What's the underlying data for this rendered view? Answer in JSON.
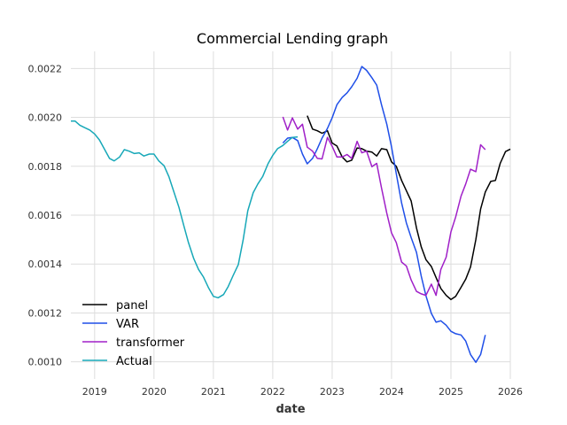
{
  "chart_data": {
    "type": "line",
    "title": "Commercial Lending graph",
    "xlabel": "date",
    "ylabel": "",
    "xlim": [
      2018.6,
      2026.0
    ],
    "ylim": [
      0.00093,
      0.00227
    ],
    "x_ticks": [
      2019,
      2020,
      2021,
      2022,
      2023,
      2024,
      2025,
      2026
    ],
    "y_ticks": [
      0.001,
      0.0012,
      0.0014,
      0.0016,
      0.0018,
      0.002,
      0.0022
    ],
    "y_tick_labels": [
      "0.0010",
      "0.0012",
      "0.0014",
      "0.0016",
      "0.0018",
      "0.0020",
      "0.0022"
    ],
    "grid": true,
    "legend_position": "lower-left",
    "series": [
      {
        "name": "panel",
        "color": "#000000",
        "points": [
          [
            2022.58,
            0.002007
          ],
          [
            2022.67,
            0.001952
          ],
          [
            2022.75,
            0.001945
          ],
          [
            2022.83,
            0.001935
          ],
          [
            2022.92,
            0.001945
          ],
          [
            2023.0,
            0.001895
          ],
          [
            2023.08,
            0.001883
          ],
          [
            2023.17,
            0.001838
          ],
          [
            2023.25,
            0.001818
          ],
          [
            2023.33,
            0.001825
          ],
          [
            2023.42,
            0.001875
          ],
          [
            2023.5,
            0.001872
          ],
          [
            2023.58,
            0.001862
          ],
          [
            2023.67,
            0.001858
          ],
          [
            2023.75,
            0.001842
          ],
          [
            2023.83,
            0.001872
          ],
          [
            2023.92,
            0.001868
          ],
          [
            2024.0,
            0.001818
          ],
          [
            2024.08,
            0.0018
          ],
          [
            2024.17,
            0.001742
          ],
          [
            2024.25,
            0.0017
          ],
          [
            2024.33,
            0.001658
          ],
          [
            2024.42,
            0.001548
          ],
          [
            2024.5,
            0.00147
          ],
          [
            2024.58,
            0.001418
          ],
          [
            2024.67,
            0.00139
          ],
          [
            2024.75,
            0.001345
          ],
          [
            2024.83,
            0.0013
          ],
          [
            2024.92,
            0.001272
          ],
          [
            2025.0,
            0.001255
          ],
          [
            2025.08,
            0.001268
          ],
          [
            2025.17,
            0.001305
          ],
          [
            2025.25,
            0.001338
          ],
          [
            2025.33,
            0.001388
          ],
          [
            2025.42,
            0.0015
          ],
          [
            2025.5,
            0.001625
          ],
          [
            2025.58,
            0.001695
          ],
          [
            2025.67,
            0.001738
          ],
          [
            2025.75,
            0.001742
          ],
          [
            2025.83,
            0.001812
          ],
          [
            2025.92,
            0.00186
          ],
          [
            2026.0,
            0.00187
          ]
        ]
      },
      {
        "name": "VAR",
        "color": "#1f4fe8",
        "points": [
          [
            2022.17,
            0.001895
          ],
          [
            2022.25,
            0.001915
          ],
          [
            2022.33,
            0.001918
          ],
          [
            2022.42,
            0.001905
          ],
          [
            2022.5,
            0.00185
          ],
          [
            2022.58,
            0.00181
          ],
          [
            2022.67,
            0.001832
          ],
          [
            2022.75,
            0.001872
          ],
          [
            2022.83,
            0.001915
          ],
          [
            2022.92,
            0.001955
          ],
          [
            2023.0,
            0.001998
          ],
          [
            2023.08,
            0.002052
          ],
          [
            2023.17,
            0.002082
          ],
          [
            2023.25,
            0.0021
          ],
          [
            2023.33,
            0.002125
          ],
          [
            2023.42,
            0.00216
          ],
          [
            2023.5,
            0.002208
          ],
          [
            2023.58,
            0.002192
          ],
          [
            2023.67,
            0.002162
          ],
          [
            2023.75,
            0.002132
          ],
          [
            2023.83,
            0.002052
          ],
          [
            2023.92,
            0.001972
          ],
          [
            2024.0,
            0.00188
          ],
          [
            2024.08,
            0.00177
          ],
          [
            2024.17,
            0.00165
          ],
          [
            2024.25,
            0.001568
          ],
          [
            2024.33,
            0.001508
          ],
          [
            2024.42,
            0.001448
          ],
          [
            2024.5,
            0.00135
          ],
          [
            2024.58,
            0.00127
          ],
          [
            2024.67,
            0.001198
          ],
          [
            2024.75,
            0.001162
          ],
          [
            2024.83,
            0.001168
          ],
          [
            2024.92,
            0.00115
          ],
          [
            2025.0,
            0.001125
          ],
          [
            2025.08,
            0.001115
          ],
          [
            2025.17,
            0.00111
          ],
          [
            2025.25,
            0.001085
          ],
          [
            2025.33,
            0.00103
          ],
          [
            2025.42,
            0.000998
          ],
          [
            2025.5,
            0.00103
          ],
          [
            2025.58,
            0.00111
          ]
        ]
      },
      {
        "name": "transformer",
        "color": "#a020c8",
        "points": [
          [
            2022.17,
            0.002002
          ],
          [
            2022.25,
            0.001948
          ],
          [
            2022.33,
            0.001998
          ],
          [
            2022.42,
            0.001952
          ],
          [
            2022.5,
            0.001972
          ],
          [
            2022.58,
            0.001878
          ],
          [
            2022.67,
            0.001862
          ],
          [
            2022.75,
            0.001832
          ],
          [
            2022.83,
            0.00183
          ],
          [
            2022.92,
            0.001918
          ],
          [
            2023.0,
            0.001882
          ],
          [
            2023.08,
            0.001838
          ],
          [
            2023.17,
            0.001838
          ],
          [
            2023.25,
            0.001848
          ],
          [
            2023.33,
            0.001832
          ],
          [
            2023.42,
            0.001902
          ],
          [
            2023.5,
            0.001855
          ],
          [
            2023.58,
            0.001862
          ],
          [
            2023.67,
            0.001798
          ],
          [
            2023.75,
            0.001812
          ],
          [
            2023.83,
            0.001712
          ],
          [
            2023.92,
            0.001608
          ],
          [
            2024.0,
            0.001528
          ],
          [
            2024.08,
            0.001488
          ],
          [
            2024.17,
            0.001408
          ],
          [
            2024.25,
            0.001392
          ],
          [
            2024.33,
            0.001335
          ],
          [
            2024.42,
            0.001288
          ],
          [
            2024.5,
            0.001278
          ],
          [
            2024.58,
            0.001272
          ],
          [
            2024.67,
            0.001318
          ],
          [
            2024.75,
            0.001272
          ],
          [
            2024.83,
            0.001378
          ],
          [
            2024.92,
            0.001428
          ],
          [
            2025.0,
            0.001532
          ],
          [
            2025.08,
            0.001592
          ],
          [
            2025.17,
            0.001678
          ],
          [
            2025.25,
            0.001728
          ],
          [
            2025.33,
            0.001788
          ],
          [
            2025.42,
            0.001778
          ],
          [
            2025.5,
            0.001888
          ],
          [
            2025.58,
            0.001868
          ]
        ]
      },
      {
        "name": "Actual",
        "color": "#17a8b8",
        "points": [
          [
            2018.6,
            0.001985
          ],
          [
            2018.67,
            0.001985
          ],
          [
            2018.75,
            0.001968
          ],
          [
            2018.83,
            0.001958
          ],
          [
            2018.92,
            0.001948
          ],
          [
            2019.0,
            0.001932
          ],
          [
            2019.08,
            0.001908
          ],
          [
            2019.17,
            0.001868
          ],
          [
            2019.25,
            0.001832
          ],
          [
            2019.33,
            0.001822
          ],
          [
            2019.42,
            0.001838
          ],
          [
            2019.5,
            0.001868
          ],
          [
            2019.58,
            0.001862
          ],
          [
            2019.67,
            0.001852
          ],
          [
            2019.75,
            0.001855
          ],
          [
            2019.83,
            0.001842
          ],
          [
            2019.92,
            0.00185
          ],
          [
            2020.0,
            0.00185
          ],
          [
            2020.08,
            0.001822
          ],
          [
            2020.17,
            0.001802
          ],
          [
            2020.25,
            0.001758
          ],
          [
            2020.33,
            0.001698
          ],
          [
            2020.42,
            0.001632
          ],
          [
            2020.5,
            0.001558
          ],
          [
            2020.58,
            0.001488
          ],
          [
            2020.67,
            0.001422
          ],
          [
            2020.75,
            0.001378
          ],
          [
            2020.83,
            0.001348
          ],
          [
            2020.92,
            0.001302
          ],
          [
            2021.0,
            0.001268
          ],
          [
            2021.08,
            0.001262
          ],
          [
            2021.17,
            0.001275
          ],
          [
            2021.25,
            0.001308
          ],
          [
            2021.33,
            0.001352
          ],
          [
            2021.42,
            0.001398
          ],
          [
            2021.5,
            0.001498
          ],
          [
            2021.58,
            0.001618
          ],
          [
            2021.67,
            0.001692
          ],
          [
            2021.75,
            0.001728
          ],
          [
            2021.83,
            0.001758
          ],
          [
            2021.92,
            0.00181
          ],
          [
            2022.0,
            0.001845
          ],
          [
            2022.08,
            0.001872
          ],
          [
            2022.17,
            0.001885
          ],
          [
            2022.25,
            0.001902
          ],
          [
            2022.33,
            0.001918
          ],
          [
            2022.42,
            0.00192
          ]
        ]
      }
    ]
  }
}
